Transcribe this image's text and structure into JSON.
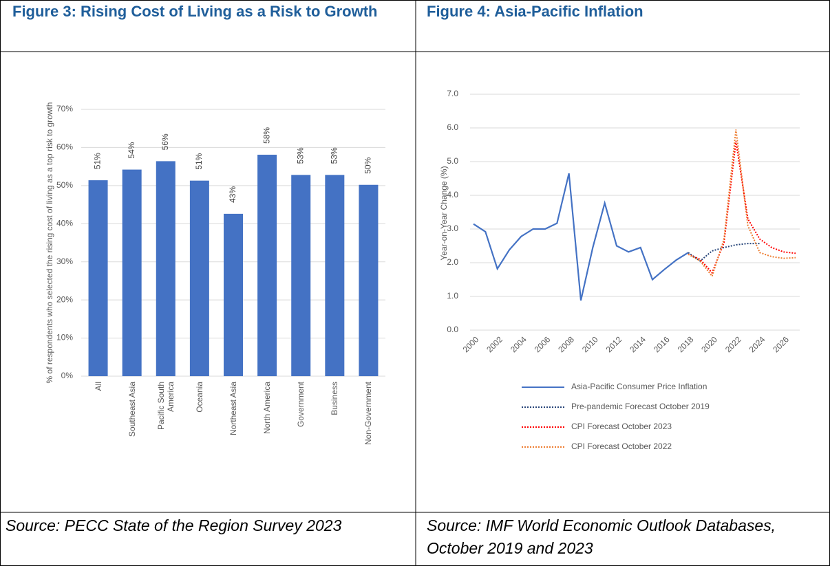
{
  "chart_data": [
    {
      "type": "bar",
      "title": "Figure 3: Rising Cost of Living as a Risk to Growth",
      "source": "Source: PECC State of the Region Survey 2023",
      "ylabel": "% of respondents who selected the rising cost of living as a top risk to growth",
      "categories": [
        "All",
        "Southeast Asia",
        "Pacific South America",
        "Oceania",
        "Northeast Asia",
        "North America",
        "Government",
        "Business",
        "Non-Government"
      ],
      "values": [
        51.4,
        54.2,
        56.4,
        51.3,
        42.6,
        58.1,
        52.8,
        52.8,
        50.2
      ],
      "value_labels": [
        "51%",
        "54%",
        "56%",
        "51%",
        "43%",
        "58%",
        "53%",
        "53%",
        "50%"
      ],
      "color": "#4472c4",
      "ylim": [
        0,
        70
      ],
      "yticks": [
        {
          "value": 0,
          "label": "0%"
        },
        {
          "value": 10,
          "label": "10%"
        },
        {
          "value": 20,
          "label": "20%"
        },
        {
          "value": 30,
          "label": "30%"
        },
        {
          "value": 40,
          "label": "40%"
        },
        {
          "value": 50,
          "label": "50%"
        },
        {
          "value": 60,
          "label": "60%"
        },
        {
          "value": 70,
          "label": "70%"
        }
      ],
      "grid": true
    },
    {
      "type": "line",
      "title": "Figure 4: Asia-Pacific Inflation",
      "source": "Source: IMF World Economic Outlook Databases, October 2019 and 2023",
      "ylabel": "Year-on-Year Change (%)",
      "x": [
        2000,
        2001,
        2002,
        2003,
        2004,
        2005,
        2006,
        2007,
        2008,
        2009,
        2010,
        2011,
        2012,
        2013,
        2014,
        2015,
        2016,
        2017,
        2018,
        2019,
        2020,
        2021,
        2022,
        2023,
        2024,
        2025,
        2026,
        2027
      ],
      "series": [
        {
          "name": "Asia-Pacific Consumer Price Inflation",
          "color": "#4472c4",
          "dash": false,
          "values": [
            3.15,
            2.92,
            1.82,
            2.38,
            2.78,
            3.0,
            3.0,
            3.17,
            4.65,
            0.88,
            2.45,
            3.77,
            2.5,
            2.32,
            2.45,
            1.5,
            1.8,
            2.08,
            2.3,
            null,
            null,
            null,
            null,
            null,
            null,
            null,
            null,
            null
          ]
        },
        {
          "name": "Pre-pandemic Forecast October 2019",
          "color": "#264478",
          "dash": true,
          "values": [
            null,
            null,
            null,
            null,
            null,
            null,
            null,
            null,
            null,
            null,
            null,
            null,
            null,
            null,
            null,
            null,
            null,
            null,
            2.3,
            2.05,
            2.35,
            2.45,
            2.53,
            2.57,
            2.57,
            null,
            null,
            null
          ]
        },
        {
          "name": "CPI Forecast October 2023",
          "color": "#ff0000",
          "dash": true,
          "values": [
            null,
            null,
            null,
            null,
            null,
            null,
            null,
            null,
            null,
            null,
            null,
            null,
            null,
            null,
            null,
            null,
            null,
            null,
            2.25,
            2.1,
            1.7,
            2.6,
            5.6,
            3.3,
            2.7,
            2.45,
            2.32,
            2.28
          ]
        },
        {
          "name": "CPI Forecast October 2022",
          "color": "#ed7d31",
          "dash": true,
          "values": [
            null,
            null,
            null,
            null,
            null,
            null,
            null,
            null,
            null,
            null,
            null,
            null,
            null,
            null,
            null,
            null,
            null,
            null,
            2.25,
            2.05,
            1.6,
            2.7,
            5.95,
            3.1,
            2.3,
            2.18,
            2.13,
            2.15
          ]
        }
      ],
      "xlim": [
        2000,
        2027
      ],
      "xticks": [
        2000,
        2002,
        2004,
        2006,
        2008,
        2010,
        2012,
        2014,
        2016,
        2018,
        2020,
        2022,
        2024,
        2026
      ],
      "ylim": [
        0,
        7
      ],
      "yticks": [
        {
          "value": 0,
          "label": "0.0"
        },
        {
          "value": 1,
          "label": "1.0"
        },
        {
          "value": 2,
          "label": "2.0"
        },
        {
          "value": 3,
          "label": "3.0"
        },
        {
          "value": 4,
          "label": "4.0"
        },
        {
          "value": 5,
          "label": "5.0"
        },
        {
          "value": 6,
          "label": "6.0"
        },
        {
          "value": 7,
          "label": "7.0"
        }
      ],
      "grid": true,
      "legend": "bottom"
    }
  ]
}
